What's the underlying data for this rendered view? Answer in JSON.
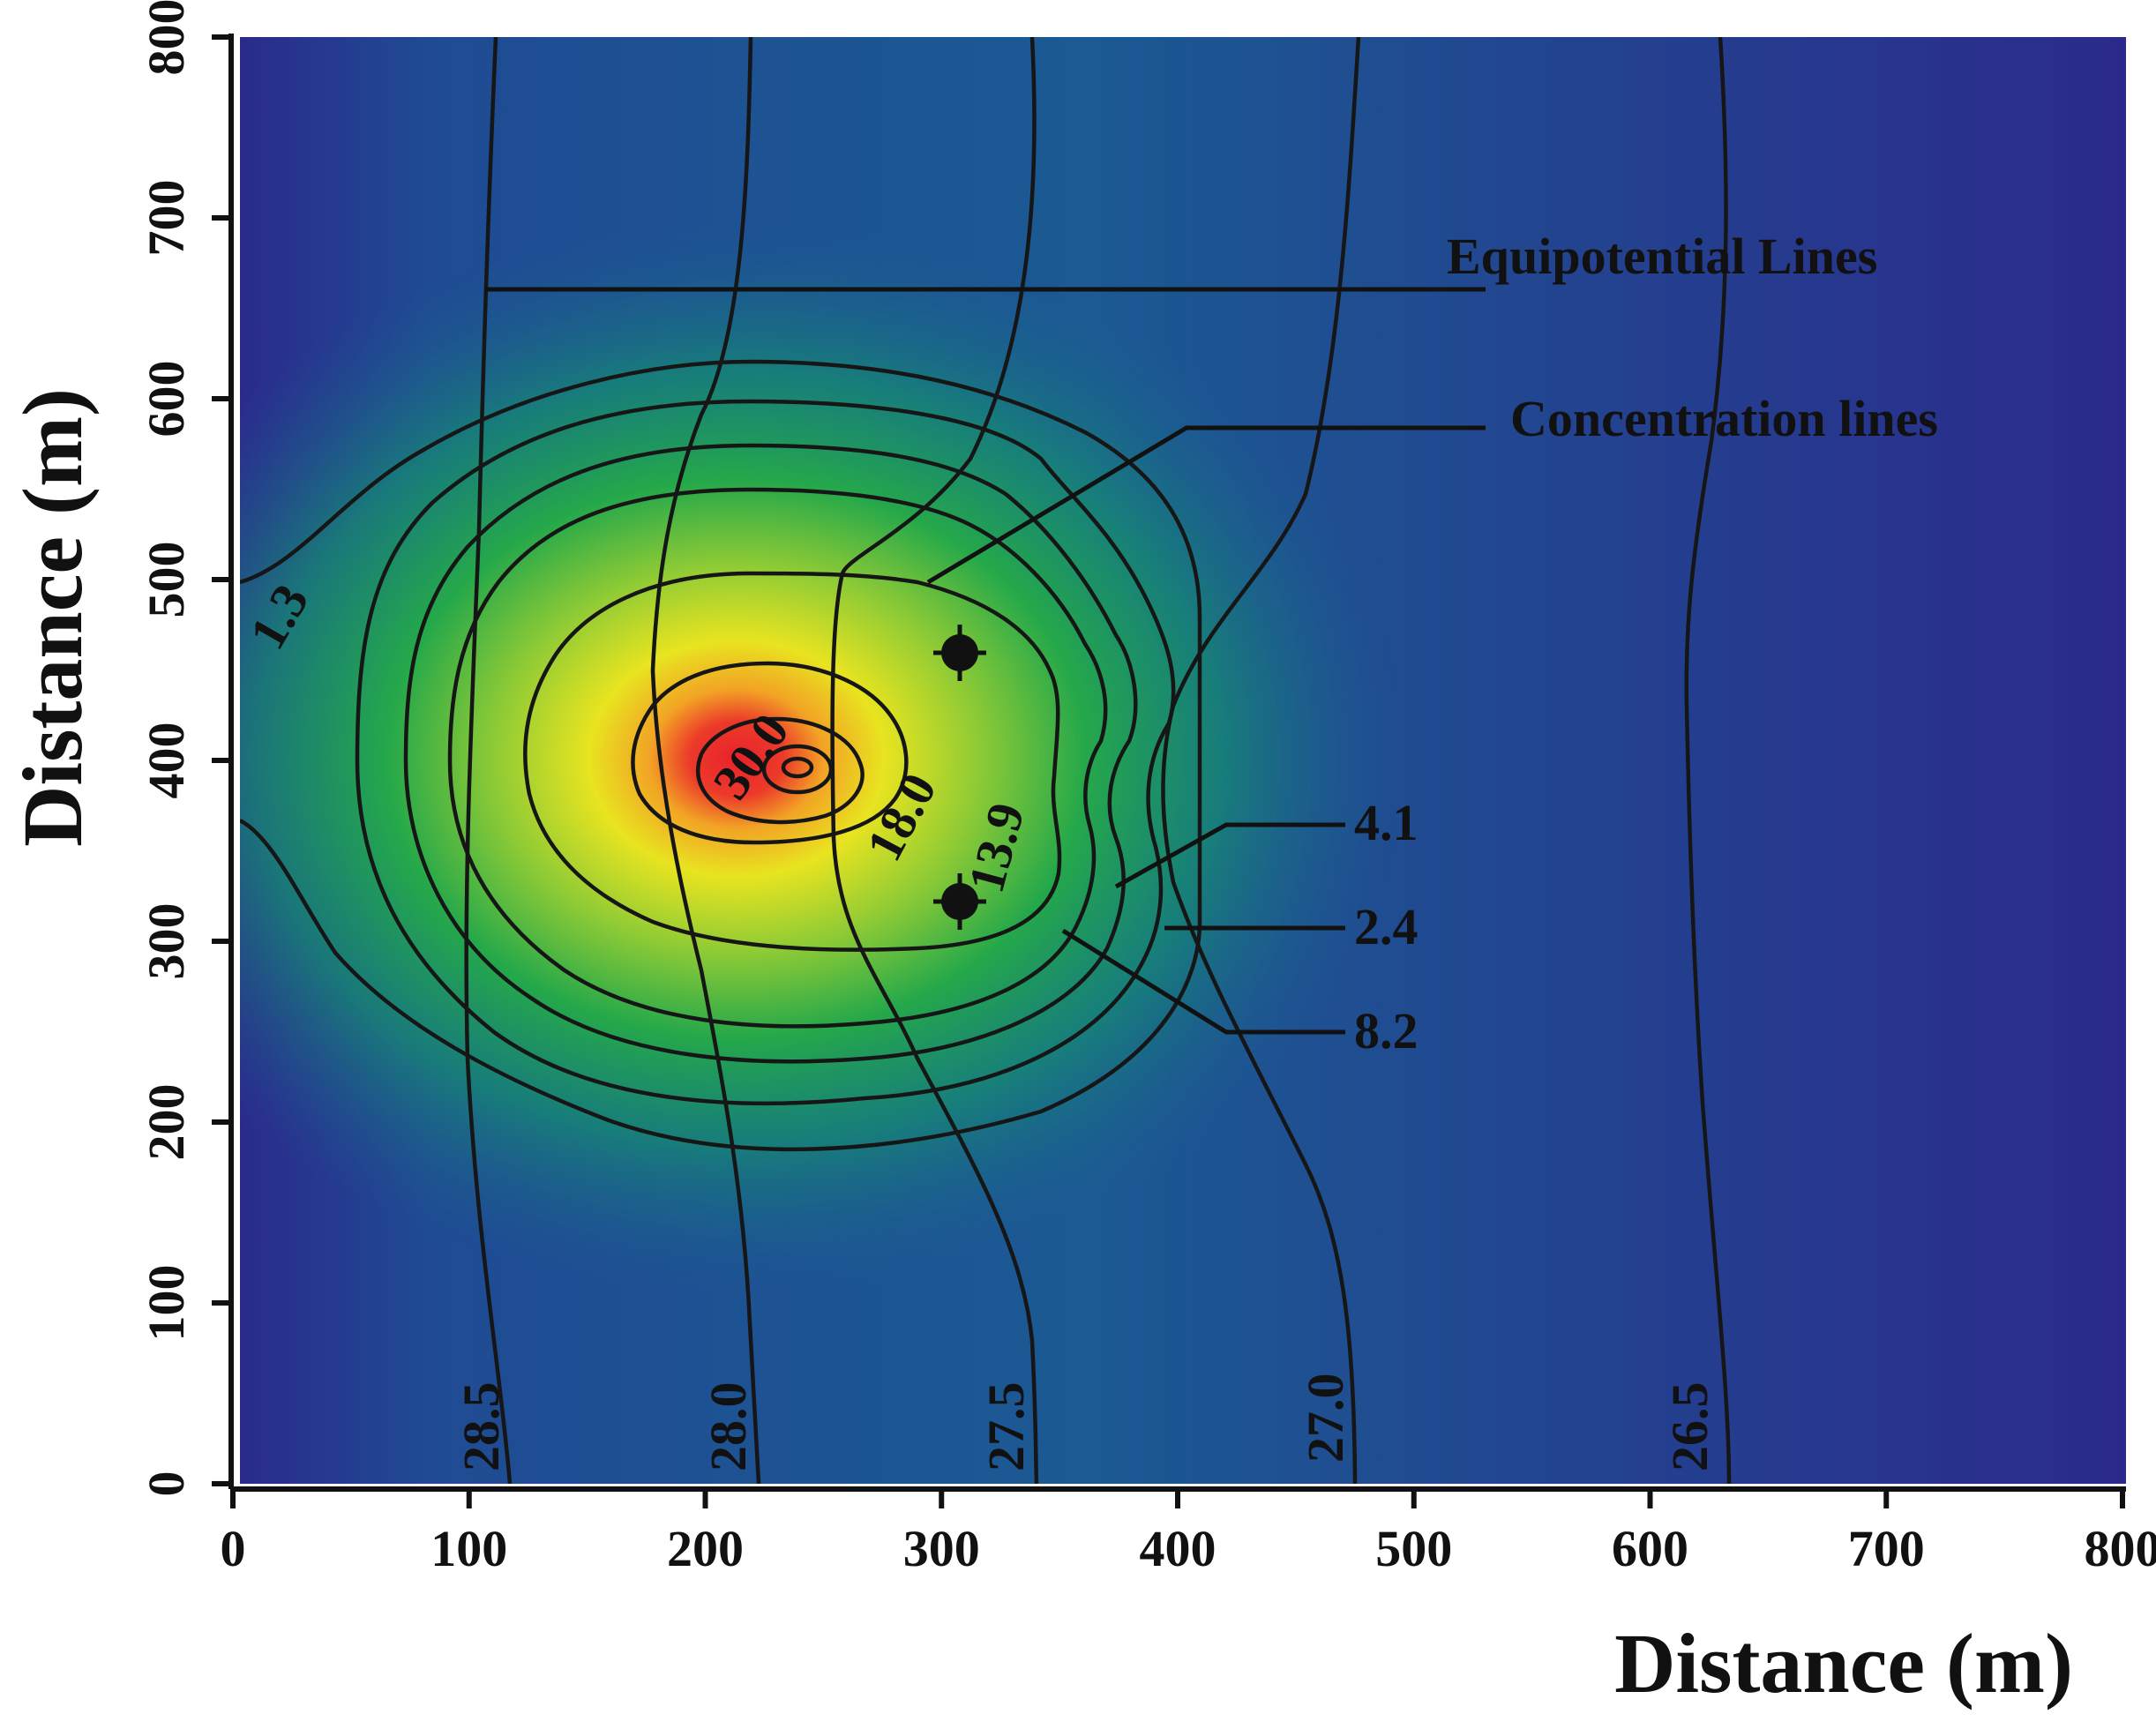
{
  "chart_data": {
    "type": "heatmap",
    "xlabel": "Distance (m)",
    "ylabel": "Distance (m)",
    "xlim": [
      0,
      800
    ],
    "ylim": [
      0,
      800
    ],
    "x_ticks": [
      "0",
      "100",
      "200",
      "300",
      "400",
      "500",
      "600",
      "700",
      "800"
    ],
    "y_ticks": [
      "0",
      "100",
      "200",
      "300",
      "400",
      "500",
      "600",
      "700",
      "800"
    ],
    "colormap": [
      "#2b2a8c",
      "#1c5690",
      "#168c72",
      "#25a84a",
      "#8fcb35",
      "#e8e420",
      "#f2a325",
      "#e8222a"
    ],
    "concentration_peak": {
      "x": 240,
      "y": 397
    },
    "concentration_levels": [
      "1.3",
      "2.4",
      "4.1",
      "8.2",
      "13.9",
      "18.0",
      "30.0"
    ],
    "equipotential_levels": [
      "28.5",
      "28.0",
      "27.5",
      "27.0",
      "26.5"
    ],
    "wells": [
      {
        "x": 305,
        "y": 460
      },
      {
        "x": 305,
        "y": 320
      }
    ],
    "annotations": {
      "equipotential": "Equipotential Lines",
      "concentration": "Concentration lines"
    }
  }
}
